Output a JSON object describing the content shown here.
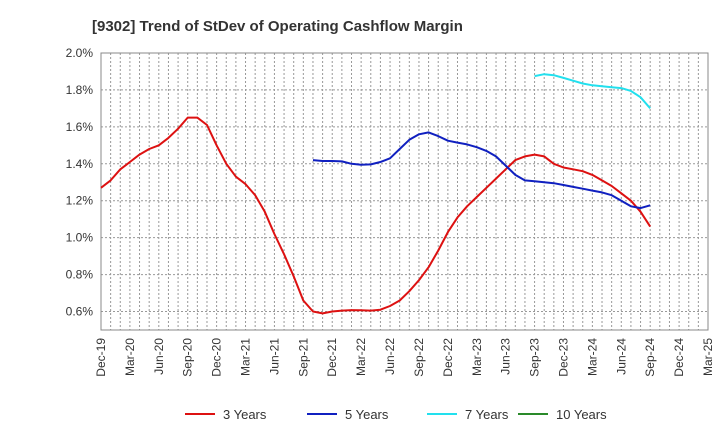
{
  "chart_data": {
    "type": "line",
    "title": "[9302]  Trend of StDev of Operating Cashflow Margin",
    "xlabel": "",
    "ylabel": "",
    "x_ticks": [
      "Dec-19",
      "Mar-20",
      "Jun-20",
      "Sep-20",
      "Dec-20",
      "Mar-21",
      "Jun-21",
      "Sep-21",
      "Dec-21",
      "Mar-22",
      "Jun-22",
      "Sep-22",
      "Dec-22",
      "Mar-23",
      "Jun-23",
      "Sep-23",
      "Dec-23",
      "Mar-24",
      "Jun-24",
      "Sep-24",
      "Dec-24",
      "Mar-25"
    ],
    "y_ticks": [
      "0.6%",
      "0.8%",
      "1.0%",
      "1.2%",
      "1.4%",
      "1.6%",
      "1.8%",
      "2.0%"
    ],
    "ylim": [
      0.5,
      2.0
    ],
    "grid": true,
    "legend_position": "bottom",
    "series": [
      {
        "name": "3 Years",
        "color": "#dd1111",
        "values": [
          1.27,
          1.31,
          1.37,
          1.41,
          1.45,
          1.48,
          1.5,
          1.54,
          1.59,
          1.65,
          1.65,
          1.61,
          1.5,
          1.4,
          1.33,
          1.29,
          1.23,
          1.14,
          1.02,
          0.91,
          0.79,
          0.66,
          0.6,
          0.59,
          0.6,
          0.605,
          0.608,
          0.607,
          0.605,
          0.61,
          0.63,
          0.66,
          0.71,
          0.77,
          0.84,
          0.93,
          1.03,
          1.11,
          1.17,
          1.22,
          1.27,
          1.32,
          1.37,
          1.42,
          1.44,
          1.45,
          1.44,
          1.4,
          1.38,
          1.37,
          1.36,
          1.34,
          1.31,
          1.28,
          1.24,
          1.2,
          1.14,
          1.06
        ]
      },
      {
        "name": "5 Years",
        "color": "#1020c0",
        "values": [
          null,
          null,
          null,
          null,
          null,
          null,
          null,
          null,
          null,
          null,
          null,
          null,
          null,
          null,
          null,
          null,
          null,
          null,
          null,
          null,
          null,
          null,
          1.42,
          1.415,
          1.415,
          1.413,
          1.4,
          1.395,
          1.397,
          1.41,
          1.43,
          1.48,
          1.53,
          1.56,
          1.57,
          1.55,
          1.525,
          1.515,
          1.505,
          1.49,
          1.47,
          1.44,
          1.39,
          1.34,
          1.31,
          1.305,
          1.3,
          1.295,
          1.285,
          1.275,
          1.265,
          1.255,
          1.245,
          1.23,
          1.2,
          1.17,
          1.16,
          1.175
        ]
      },
      {
        "name": "7 Years",
        "color": "#22e0ee",
        "values": [
          null,
          null,
          null,
          null,
          null,
          null,
          null,
          null,
          null,
          null,
          null,
          null,
          null,
          null,
          null,
          null,
          null,
          null,
          null,
          null,
          null,
          null,
          null,
          null,
          null,
          null,
          null,
          null,
          null,
          null,
          null,
          null,
          null,
          null,
          null,
          null,
          null,
          null,
          null,
          null,
          null,
          null,
          null,
          null,
          null,
          1.875,
          1.885,
          1.88,
          1.865,
          1.85,
          1.835,
          1.825,
          1.82,
          1.815,
          1.81,
          1.795,
          1.76,
          1.7
        ]
      },
      {
        "name": "10 Years",
        "color": "#2a8a2a",
        "values": []
      }
    ]
  }
}
